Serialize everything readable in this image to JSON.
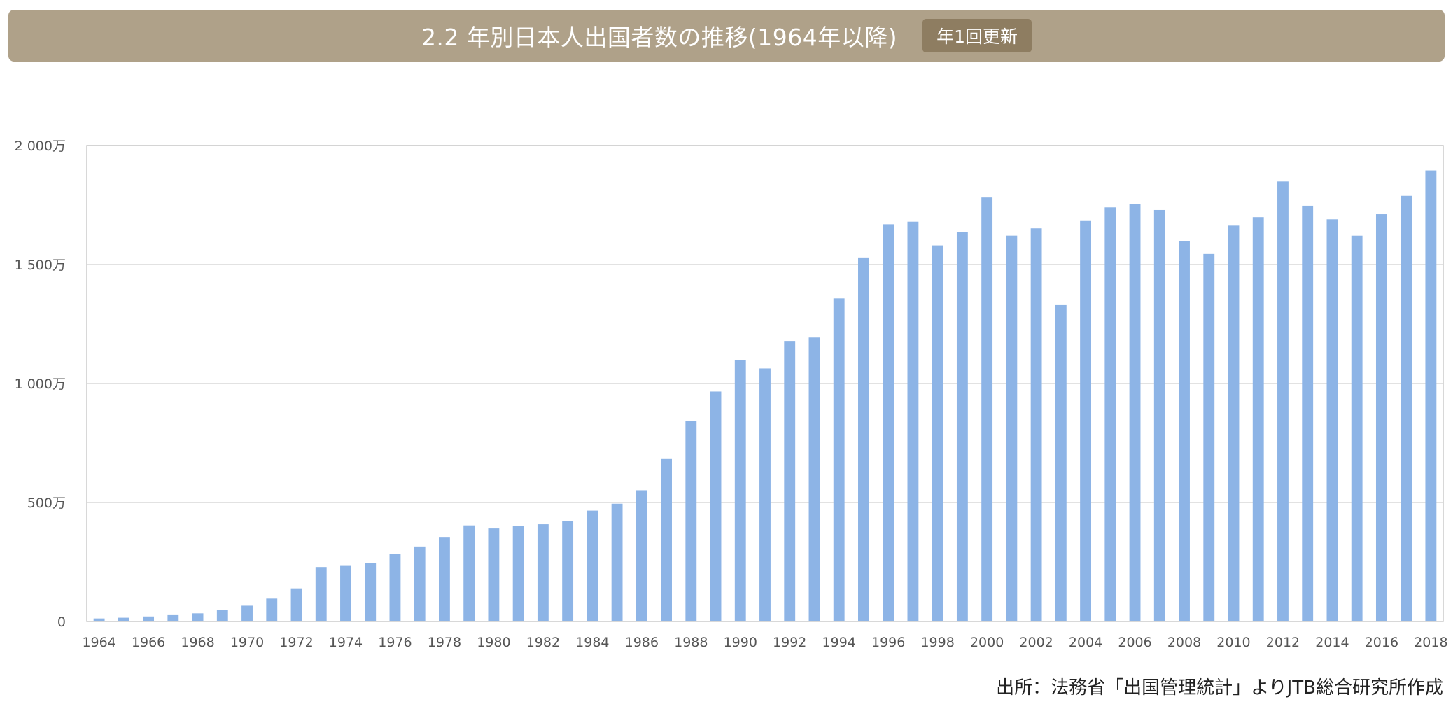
{
  "header": {
    "title": "2.2 年別日本人出国者数の推移(1964年以降)",
    "badge": "年1回更新"
  },
  "source": "出所：法務省「出国管理統計」よりJTB総合研究所作成",
  "colors": {
    "header_bg": "#afa189",
    "badge_bg": "#8e7d61",
    "bar": "#8db4e6",
    "grid": "#d9d9d9"
  },
  "chart_data": {
    "type": "bar",
    "title": "",
    "xlabel": "",
    "ylabel": "",
    "ylim": [
      0,
      20000000
    ],
    "grid": true,
    "y_ticks": [
      {
        "value": 0,
        "label": "0"
      },
      {
        "value": 5000000,
        "label": "500万"
      },
      {
        "value": 10000000,
        "label": "1 000万"
      },
      {
        "value": 15000000,
        "label": "1 500万"
      },
      {
        "value": 20000000,
        "label": "2 000万"
      }
    ],
    "categories": [
      "1964",
      "1965",
      "1966",
      "1967",
      "1968",
      "1969",
      "1970",
      "1971",
      "1972",
      "1973",
      "1974",
      "1975",
      "1976",
      "1977",
      "1978",
      "1979",
      "1980",
      "1981",
      "1982",
      "1983",
      "1984",
      "1985",
      "1986",
      "1987",
      "1988",
      "1989",
      "1990",
      "1991",
      "1992",
      "1993",
      "1994",
      "1995",
      "1996",
      "1997",
      "1998",
      "1999",
      "2000",
      "2001",
      "2002",
      "2003",
      "2004",
      "2005",
      "2006",
      "2007",
      "2008",
      "2009",
      "2010",
      "2011",
      "2012",
      "2013",
      "2014",
      "2015",
      "2016",
      "2017",
      "2018"
    ],
    "x_tick_labels": [
      "1964",
      "1966",
      "1968",
      "1970",
      "1972",
      "1974",
      "1976",
      "1978",
      "1980",
      "1982",
      "1984",
      "1986",
      "1988",
      "1990",
      "1992",
      "1994",
      "1996",
      "1998",
      "2000",
      "2002",
      "2004",
      "2006",
      "2008",
      "2010",
      "2012",
      "2014",
      "2016",
      "2018"
    ],
    "values": [
      127749,
      158827,
      212409,
      267538,
      343542,
      492880,
      663467,
      961135,
      1392045,
      2288966,
      2335530,
      2466326,
      2852584,
      3151431,
      3525110,
      4038298,
      3909333,
      4006388,
      4086138,
      4232246,
      4658833,
      4948366,
      5516193,
      6829338,
      8426867,
      9662752,
      10997431,
      10633777,
      11790699,
      11933620,
      13578934,
      15298125,
      16694769,
      16802750,
      15806218,
      16357572,
      17818590,
      16215657,
      16522804,
      13296330,
      16831112,
      17403565,
      17534565,
      17294935,
      15987250,
      15445684,
      16637224,
      16994200,
      18490657,
      17472748,
      16903388,
      16213789,
      17116420,
      17889292,
      18954031
    ]
  }
}
